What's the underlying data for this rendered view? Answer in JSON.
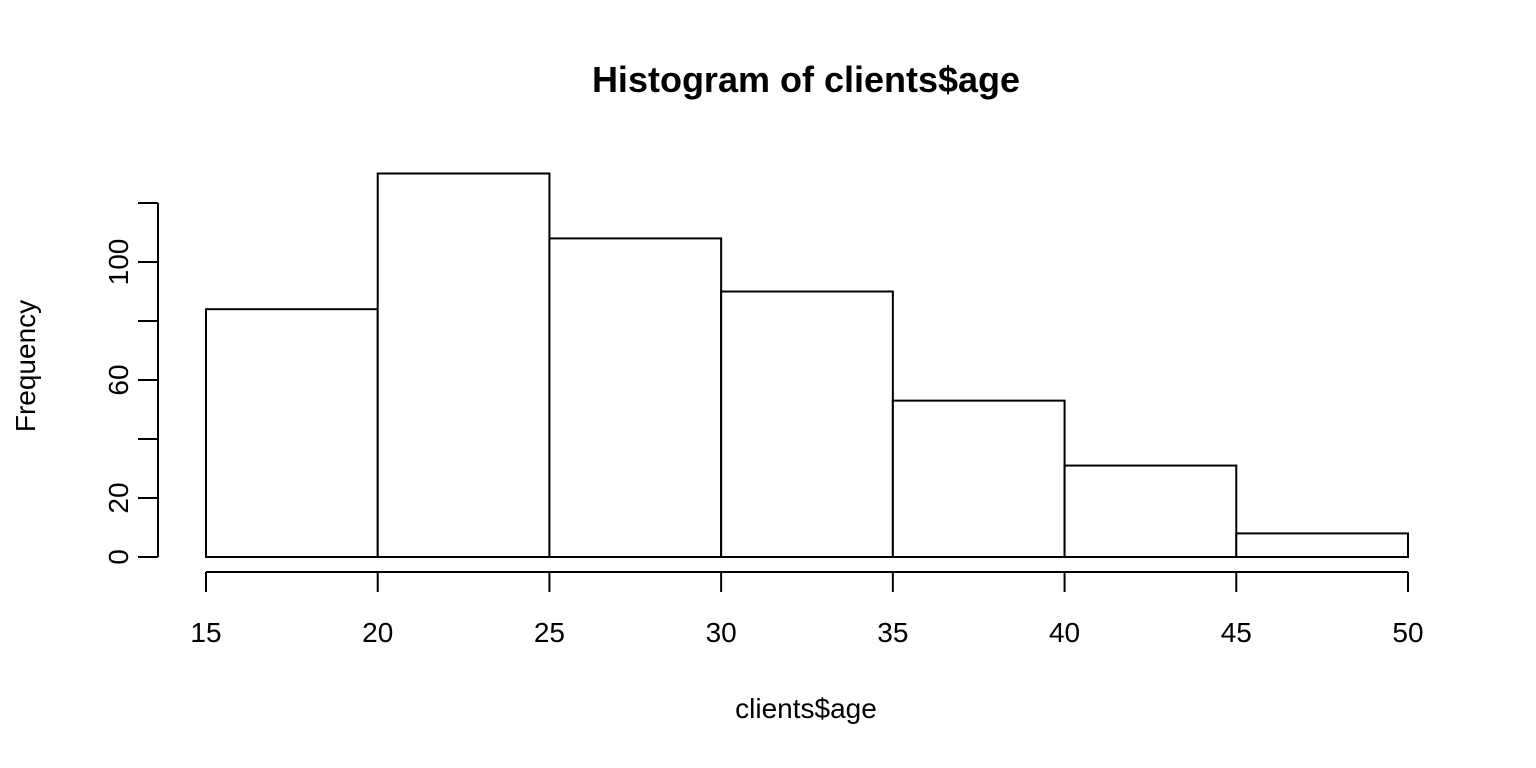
{
  "chart_data": {
    "type": "bar",
    "subtype": "histogram",
    "title": "Histogram of clients$age",
    "xlabel": "clients$age",
    "ylabel": "Frequency",
    "bins": [
      {
        "start": 15,
        "end": 20,
        "count": 84
      },
      {
        "start": 20,
        "end": 25,
        "count": 130
      },
      {
        "start": 25,
        "end": 30,
        "count": 108
      },
      {
        "start": 30,
        "end": 35,
        "count": 90
      },
      {
        "start": 35,
        "end": 40,
        "count": 53
      },
      {
        "start": 40,
        "end": 45,
        "count": 31
      },
      {
        "start": 45,
        "end": 50,
        "count": 8
      }
    ],
    "xlim": [
      15,
      50
    ],
    "ylim": [
      0,
      120
    ],
    "x_ticks": [
      15,
      20,
      25,
      30,
      35,
      40,
      45,
      50
    ],
    "y_ticks": [
      0,
      20,
      40,
      60,
      80,
      100,
      120
    ],
    "y_tick_labels": [
      "0",
      "20",
      "",
      "60",
      "",
      "100",
      ""
    ],
    "grid": false,
    "legend": "none",
    "colors": {
      "bar_fill": "#ffffff",
      "bar_stroke": "#000000"
    }
  }
}
